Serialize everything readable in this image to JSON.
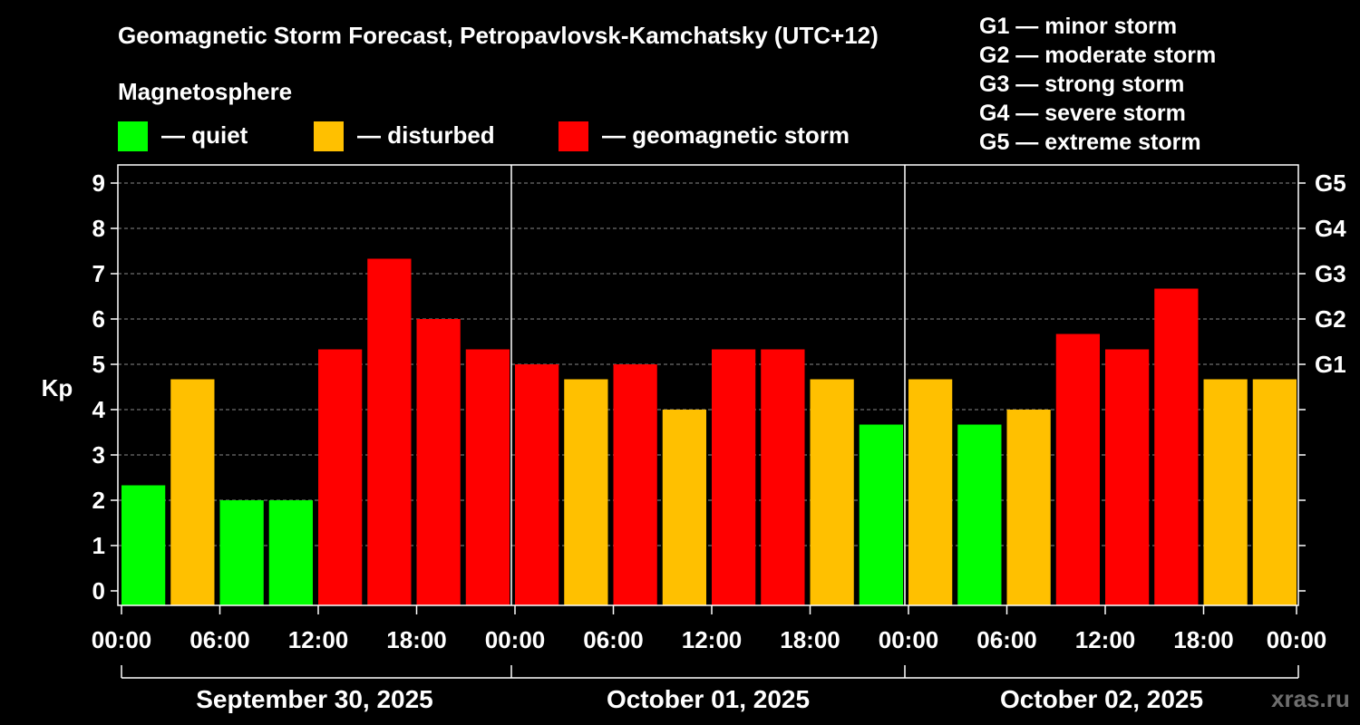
{
  "title": "Geomagnetic Storm Forecast, Petropavlovsk-Kamchatsky (UTC+12)",
  "legend": {
    "heading": "Magnetosphere",
    "items": [
      {
        "label": "— quiet",
        "color": "#00ff00"
      },
      {
        "label": "— disturbed",
        "color": "#ffc000"
      },
      {
        "label": "— geomagnetic storm",
        "color": "#ff0000"
      }
    ]
  },
  "storm_scale": [
    "G1 — minor storm",
    "G2 — moderate storm",
    "G3 — strong storm",
    "G4 — severe storm",
    "G5 — extreme storm"
  ],
  "watermark": "xras.ru",
  "chart_data": {
    "type": "bar",
    "title": "Geomagnetic Storm Forecast, Petropavlovsk-Kamchatsky (UTC+12)",
    "ylabel": "Kp",
    "xlabel": "",
    "ylim": [
      0,
      9
    ],
    "yticks": [
      "0",
      "1",
      "2",
      "3",
      "4",
      "5",
      "6",
      "7",
      "8",
      "9"
    ],
    "right_axis": [
      {
        "label": "G1",
        "kp": 5
      },
      {
        "label": "G2",
        "kp": 6
      },
      {
        "label": "G3",
        "kp": 7
      },
      {
        "label": "G4",
        "kp": 8
      },
      {
        "label": "G5",
        "kp": 9
      }
    ],
    "xticks": [
      "00:00",
      "06:00",
      "12:00",
      "18:00",
      "00:00",
      "06:00",
      "12:00",
      "18:00",
      "00:00",
      "06:00",
      "12:00",
      "18:00",
      "00:00"
    ],
    "days": [
      "September 30, 2025",
      "October 01, 2025",
      "October 02, 2025"
    ],
    "values": [
      2.33,
      4.67,
      2.0,
      2.0,
      5.33,
      7.33,
      6.0,
      5.33,
      5.0,
      4.67,
      5.0,
      4.0,
      5.33,
      5.33,
      4.67,
      3.67,
      4.67,
      3.67,
      4.0,
      5.67,
      5.33,
      6.67,
      4.67,
      4.67
    ],
    "colors": [
      "#00ff00",
      "#ffc000",
      "#00ff00",
      "#00ff00",
      "#ff0000",
      "#ff0000",
      "#ff0000",
      "#ff0000",
      "#ff0000",
      "#ffc000",
      "#ff0000",
      "#ffc000",
      "#ff0000",
      "#ff0000",
      "#ffc000",
      "#00ff00",
      "#ffc000",
      "#00ff00",
      "#ffc000",
      "#ff0000",
      "#ff0000",
      "#ff0000",
      "#ffc000",
      "#ffc000"
    ],
    "grid": true
  }
}
